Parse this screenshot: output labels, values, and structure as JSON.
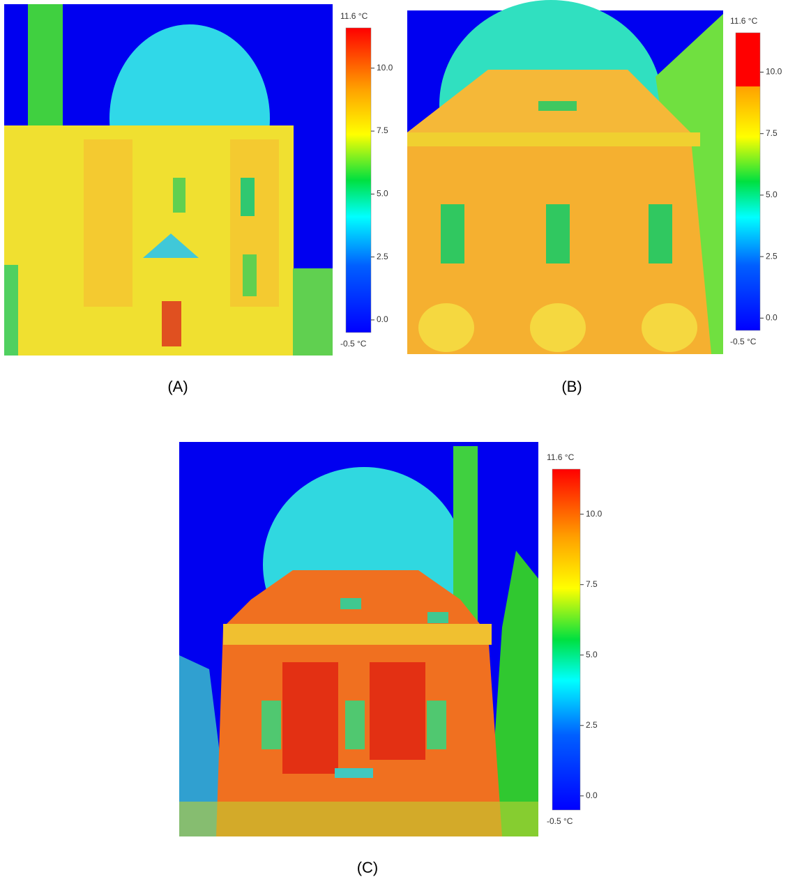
{
  "panels": [
    {
      "label": "(A)",
      "scale": {
        "max": {
          "value": 11.6,
          "label": "11.6 °C"
        },
        "min": {
          "value": -0.5,
          "label": "-0.5 °C"
        },
        "ticks": [
          {
            "value": 10,
            "label": "10.0"
          },
          7.5,
          {
            "value": 5,
            "label": "5.0"
          },
          2.5,
          {
            "value": 0,
            "label": "0.0"
          }
        ]
      }
    },
    {
      "label": "(B)",
      "scale": {
        "max": {
          "value": 11.6,
          "label": "11.6 °C"
        },
        "min": {
          "value": -0.5,
          "label": "-0.5 °C"
        },
        "ticks": [
          {
            "value": 10,
            "label": "10.0"
          },
          7.5,
          {
            "value": 5,
            "label": "5.0"
          },
          2.5,
          {
            "value": 0,
            "label": "0.0"
          }
        ]
      }
    },
    {
      "label": "(C)",
      "scale": {
        "max": {
          "value": 11.6,
          "label": "11.6 °C"
        },
        "min": {
          "value": -0.5,
          "label": "-0.5 °C"
        },
        "ticks": [
          {
            "value": 10,
            "label": "10.0"
          },
          7.5,
          {
            "value": 5,
            "label": "5.0"
          },
          2.5,
          {
            "value": 0,
            "label": "0.0"
          }
        ]
      }
    }
  ]
}
